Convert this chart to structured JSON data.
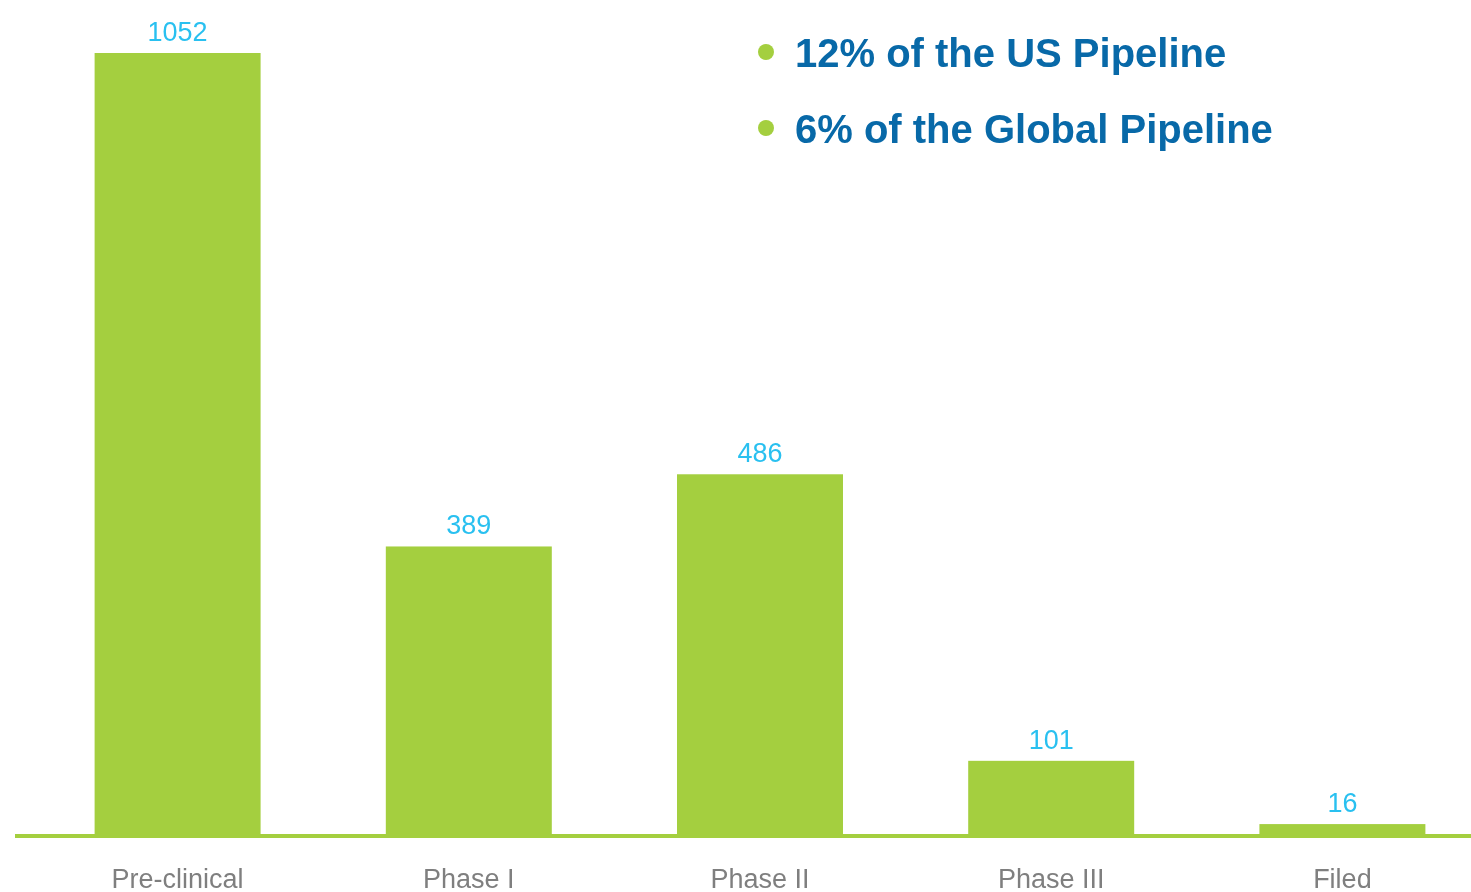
{
  "chart_data": {
    "type": "bar",
    "categories": [
      "Pre-clinical",
      "Phase I",
      "Phase II",
      "Phase III",
      "Filed"
    ],
    "values": [
      1052,
      389,
      486,
      101,
      16
    ],
    "color": "#a4cf3f",
    "data_labels": true,
    "annotations": [
      "12% of the US Pipeline",
      "6% of the Global Pipeline"
    ]
  }
}
